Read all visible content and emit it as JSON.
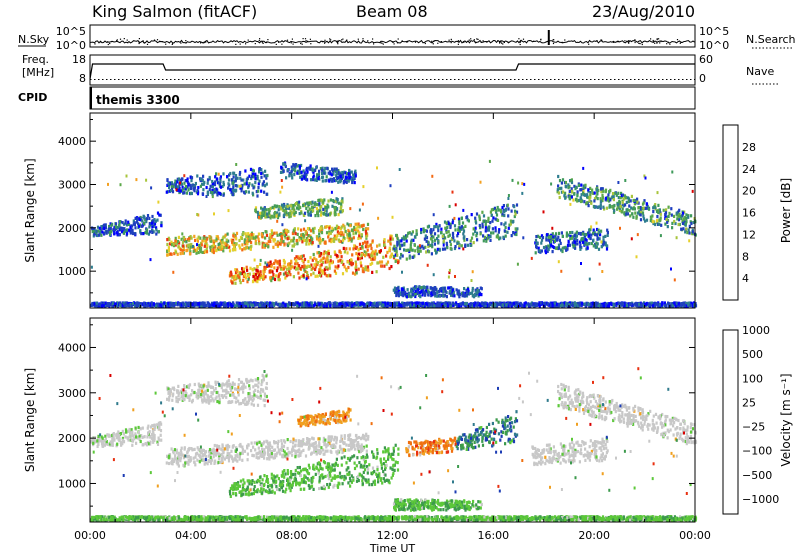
{
  "header": {
    "station": "King Salmon (fitACF)",
    "beam": "Beam 08",
    "date": "23/Aug/2010"
  },
  "chart_data": [
    {
      "type": "line",
      "panel": "nsky-nsearch",
      "left_label": "N.Sky",
      "right_label": "N.Search",
      "left_ticks": [
        "10^5",
        "10^0"
      ],
      "right_ticks": [
        "10^5",
        "10^0"
      ]
    },
    {
      "type": "line",
      "panel": "frequency-nave",
      "left_label": "Freq.\n[MHz]",
      "left_label_lines": [
        "Freq.",
        "[MHz]"
      ],
      "right_label": "Nave",
      "left_ticks": [
        18,
        8
      ],
      "right_ticks": [
        60,
        0
      ],
      "freq_steps": [
        {
          "t": 0.0,
          "f": 10
        },
        {
          "t": 0.1,
          "f": 15
        },
        {
          "t": 2.9,
          "f": 15
        },
        {
          "t": 3.0,
          "f": 13
        },
        {
          "t": 16.9,
          "f": 13
        },
        {
          "t": 17.0,
          "f": 15
        },
        {
          "t": 24.0,
          "f": 15
        }
      ],
      "nave_level": 11
    },
    {
      "type": "table",
      "panel": "cpid",
      "label": "CPID",
      "mode": "themis 3300"
    },
    {
      "type": "heatmap",
      "panel": "power",
      "xlim": [
        0,
        24
      ],
      "ylim": [
        150,
        4650
      ],
      "ylabel": "Slant Range [km]",
      "yticks": [
        1000,
        2000,
        3000,
        4000
      ],
      "colorbar": {
        "label": "Power [dB]",
        "ticks": [
          4,
          8,
          12,
          16,
          20,
          24,
          28
        ],
        "colors": [
          "#0000ff",
          "#1f3fbf",
          "#2e7d8f",
          "#3f9a5a",
          "#5ca84a",
          "#a8c43c",
          "#e6d02c",
          "#f3a020",
          "#f36a14",
          "#e83210",
          "#d80000"
        ]
      },
      "blobs": [
        {
          "t0": 0.0,
          "t1": 2.8,
          "r0": 1800,
          "r1": 2000,
          "r0e": 1850,
          "r1e": 2350,
          "lo": 0.05,
          "hi": 0.3
        },
        {
          "t0": 3.0,
          "t1": 11.0,
          "r0": 1350,
          "r1": 1750,
          "r0e": 1700,
          "r1e": 2100,
          "lo": 0.35,
          "hi": 0.85
        },
        {
          "t0": 5.5,
          "t1": 12.2,
          "r0": 700,
          "r1": 1000,
          "r0e": 1000,
          "r1e": 1850,
          "lo": 0.45,
          "hi": 0.95
        },
        {
          "t0": 3.0,
          "t1": 7.0,
          "r0": 2800,
          "r1": 3100,
          "r0e": 2700,
          "r1e": 3400,
          "lo": 0.05,
          "hi": 0.3
        },
        {
          "t0": 6.5,
          "t1": 10.0,
          "r0": 2200,
          "r1": 2450,
          "r0e": 2300,
          "r1e": 2700,
          "lo": 0.2,
          "hi": 0.55
        },
        {
          "t0": 7.5,
          "t1": 10.5,
          "r0": 3150,
          "r1": 3500,
          "r0e": 3000,
          "r1e": 3300,
          "lo": 0.05,
          "hi": 0.25
        },
        {
          "t0": 12.0,
          "t1": 16.9,
          "r0": 1200,
          "r1": 1800,
          "r0e": 1800,
          "r1e": 2600,
          "lo": 0.05,
          "hi": 0.45
        },
        {
          "t0": 12.0,
          "t1": 15.5,
          "r0": 400,
          "r1": 650,
          "r0e": 400,
          "r1e": 600,
          "lo": 0.05,
          "hi": 0.25
        },
        {
          "t0": 17.5,
          "t1": 20.5,
          "r0": 1400,
          "r1": 1800,
          "r0e": 1500,
          "r1e": 2000,
          "lo": 0.05,
          "hi": 0.35
        },
        {
          "t0": 18.5,
          "t1": 24.0,
          "r0": 2700,
          "r1": 3200,
          "r0e": 1800,
          "r1e": 2300,
          "lo": 0.1,
          "hi": 0.5
        },
        {
          "t0": 0.0,
          "t1": 24.0,
          "r0": 180,
          "r1": 260,
          "r0e": 180,
          "r1e": 260,
          "lo": 0.05,
          "hi": 0.2
        }
      ]
    },
    {
      "type": "heatmap",
      "panel": "velocity",
      "xlim": [
        0,
        24
      ],
      "ylim": [
        150,
        4650
      ],
      "ylabel": "Slant Range [km]",
      "yticks": [
        1000,
        2000,
        3000,
        4000
      ],
      "xticks": [
        "00:00",
        "04:00",
        "08:00",
        "12:00",
        "16:00",
        "20:00",
        "00:00"
      ],
      "xlabel": "Time UT",
      "colorbar": {
        "label": "Velocity [m s⁻¹]",
        "ticks": [
          "1000",
          "500",
          "100",
          "25",
          "−25",
          "−100",
          "−500",
          "−1000"
        ],
        "colors": [
          "#1c3cb4",
          "#2f7a8c",
          "#3c9a4c",
          "#5cc83a",
          "#c8c8c8",
          "#c8c8c8",
          "#f0a020",
          "#f07010",
          "#e83010",
          "#d80000"
        ]
      },
      "blobs": [
        {
          "t0": 0.0,
          "t1": 2.8,
          "r0": 1800,
          "r1": 2000,
          "r0e": 1850,
          "r1e": 2350,
          "lo": 0.4,
          "hi": 0.55
        },
        {
          "t0": 3.0,
          "t1": 11.0,
          "r0": 1350,
          "r1": 1750,
          "r0e": 1700,
          "r1e": 2100,
          "lo": 0.42,
          "hi": 0.55
        },
        {
          "t0": 5.5,
          "t1": 12.2,
          "r0": 700,
          "r1": 1000,
          "r0e": 1000,
          "r1e": 1850,
          "lo": 0.28,
          "hi": 0.36
        },
        {
          "t0": 8.2,
          "t1": 10.3,
          "r0": 2250,
          "r1": 2450,
          "r0e": 2350,
          "r1e": 2650,
          "lo": 0.62,
          "hi": 0.72
        },
        {
          "t0": 3.0,
          "t1": 7.0,
          "r0": 2800,
          "r1": 3100,
          "r0e": 2700,
          "r1e": 3400,
          "lo": 0.4,
          "hi": 0.55
        },
        {
          "t0": 12.5,
          "t1": 14.5,
          "r0": 1600,
          "r1": 1900,
          "r0e": 1700,
          "r1e": 2000,
          "lo": 0.6,
          "hi": 0.85
        },
        {
          "t0": 14.5,
          "t1": 16.9,
          "r0": 1700,
          "r1": 2000,
          "r0e": 1900,
          "r1e": 2600,
          "lo": 0.05,
          "hi": 0.3
        },
        {
          "t0": 12.0,
          "t1": 15.5,
          "r0": 400,
          "r1": 650,
          "r0e": 400,
          "r1e": 600,
          "lo": 0.28,
          "hi": 0.36
        },
        {
          "t0": 18.5,
          "t1": 24.0,
          "r0": 2700,
          "r1": 3200,
          "r0e": 1800,
          "r1e": 2300,
          "lo": 0.42,
          "hi": 0.55
        },
        {
          "t0": 17.5,
          "t1": 20.5,
          "r0": 1400,
          "r1": 1800,
          "r0e": 1500,
          "r1e": 2000,
          "lo": 0.42,
          "hi": 0.55
        },
        {
          "t0": 0.0,
          "t1": 24.0,
          "r0": 180,
          "r1": 260,
          "r0e": 180,
          "r1e": 260,
          "lo": 0.3,
          "hi": 0.36
        }
      ]
    }
  ]
}
